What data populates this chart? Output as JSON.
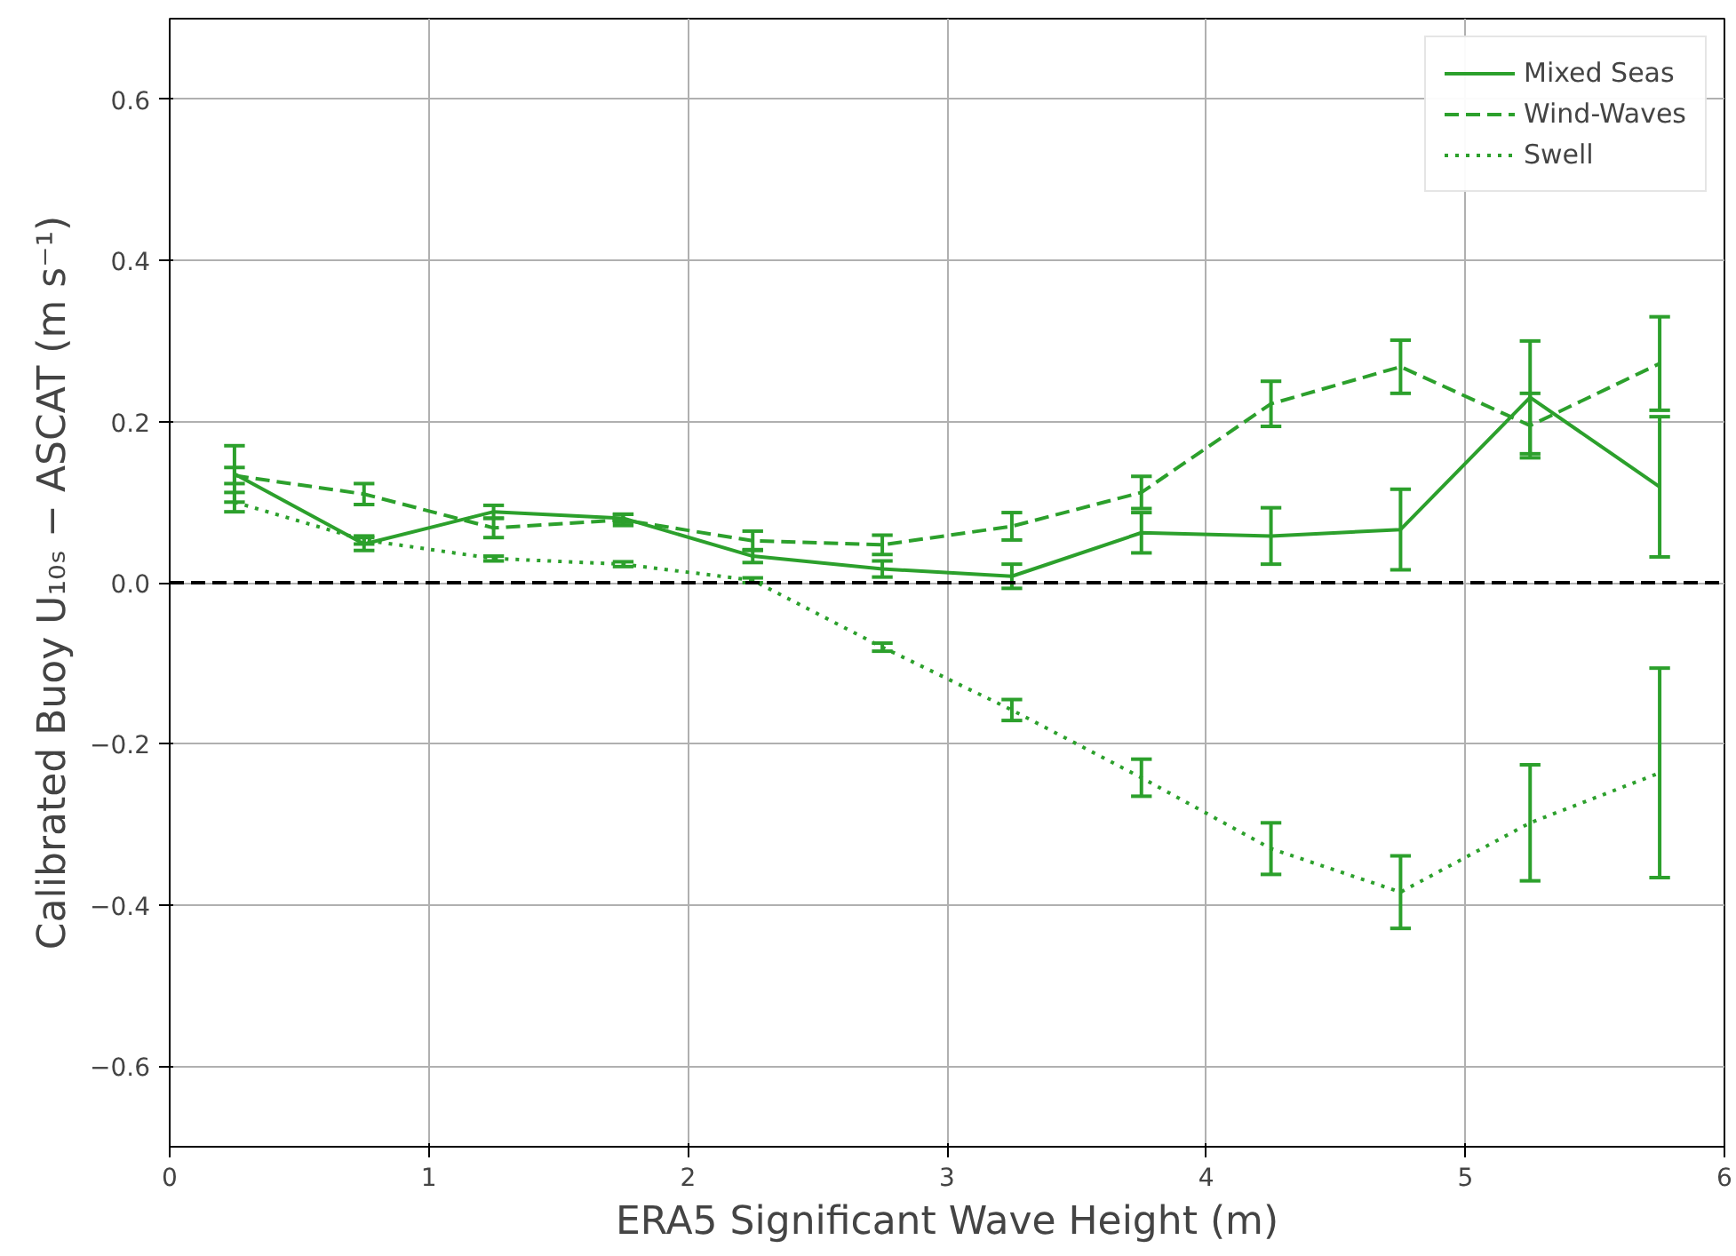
{
  "chart_data": {
    "type": "line",
    "xlabel": "ERA5 Significant Wave Height (m)",
    "ylabel": "Calibrated Buoy U₁₀ₛ − ASCAT (m s⁻¹)",
    "x": [
      0.25,
      0.75,
      1.25,
      1.75,
      2.25,
      2.75,
      3.25,
      3.75,
      4.25,
      4.75,
      5.25,
      5.75
    ],
    "series": [
      {
        "name": "Mixed Seas",
        "color": "#2ca02c",
        "line_style": "solid",
        "values": [
          0.135,
          0.048,
          0.088,
          0.08,
          0.033,
          0.017,
          0.008,
          0.062,
          0.058,
          0.066,
          0.23,
          0.119
        ],
        "errors": [
          0.035,
          0.008,
          0.008,
          0.005,
          0.008,
          0.01,
          0.015,
          0.025,
          0.035,
          0.05,
          0.07,
          0.087
        ]
      },
      {
        "name": "Wind-Waves",
        "color": "#2ca02c",
        "line_style": "dashed",
        "values": [
          0.133,
          0.11,
          0.068,
          0.078,
          0.052,
          0.047,
          0.07,
          0.112,
          0.222,
          0.268,
          0.195,
          0.272
        ],
        "errors": [
          0.01,
          0.013,
          0.012,
          0.007,
          0.012,
          0.012,
          0.017,
          0.02,
          0.028,
          0.033,
          0.04,
          0.058
        ]
      },
      {
        "name": "Swell",
        "color": "#2ca02c",
        "line_style": "dotted",
        "values": [
          0.1,
          0.053,
          0.03,
          0.023,
          0.003,
          -0.08,
          -0.158,
          -0.242,
          -0.33,
          -0.384,
          -0.298,
          -0.236
        ],
        "errors": [
          0.012,
          0.005,
          0.003,
          0.003,
          0.003,
          0.005,
          0.013,
          0.023,
          0.032,
          0.045,
          0.072,
          0.13
        ]
      }
    ],
    "ref_lines": [
      {
        "axis": "y",
        "value": 0,
        "color": "#000000",
        "line_style": "dashed"
      }
    ],
    "xlim": [
      0,
      6
    ],
    "ylim": [
      -0.7,
      0.7
    ],
    "xticks": [
      0,
      1,
      2,
      3,
      4,
      5,
      6
    ],
    "yticks": [
      {
        "value": -0.6,
        "label": "−0.6"
      },
      {
        "value": -0.4,
        "label": "−0.4"
      },
      {
        "value": -0.2,
        "label": "−0.2"
      },
      {
        "value": 0,
        "label": "0.0"
      },
      {
        "value": 0.2,
        "label": "0.2"
      },
      {
        "value": 0.4,
        "label": "0.4"
      },
      {
        "value": 0.6,
        "label": "0.6"
      }
    ],
    "grid": true,
    "legend": "top right",
    "marker": "none"
  }
}
